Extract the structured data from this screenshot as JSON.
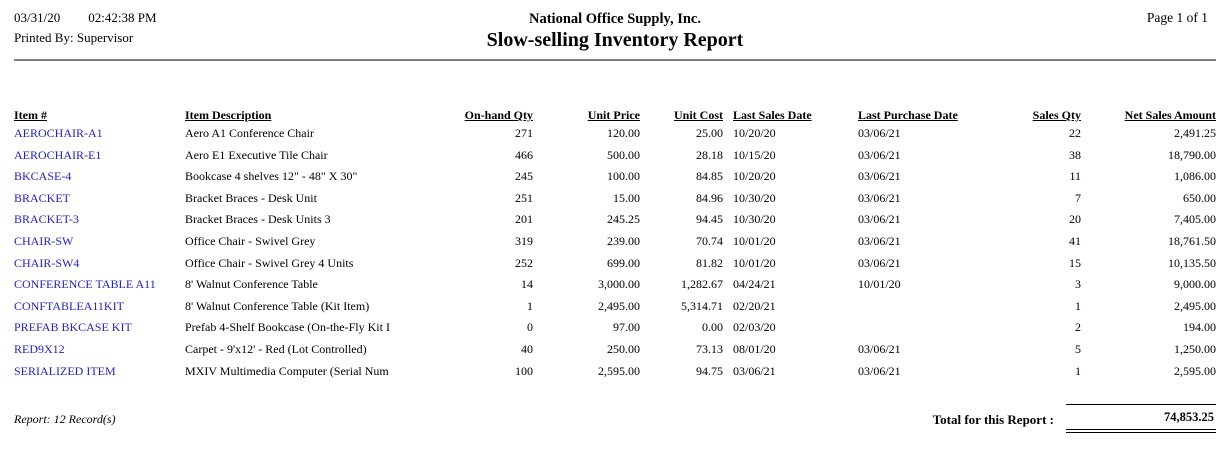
{
  "header": {
    "date": "03/31/20",
    "time": "02:42:38 PM",
    "printed_by": "Printed By: Supervisor",
    "company": "National Office Supply, Inc.",
    "title": "Slow-selling Inventory Report",
    "page_label": "Page 1 of 1"
  },
  "table": {
    "columns": [
      "Item #",
      "Item Description",
      "On-hand Qty",
      "Unit Price",
      "Unit Cost",
      "Last Sales Date",
      "Last Purchase Date",
      "Sales Qty",
      "Net Sales Amount"
    ],
    "rows": [
      {
        "item": "AEROCHAIR-A1",
        "description": "Aero A1 Conference Chair",
        "on_hand_qty": "271",
        "unit_price": "120.00",
        "unit_cost": "25.00",
        "last_sales_date": "10/20/20",
        "last_purchase_date": "03/06/21",
        "sales_qty": "22",
        "net_sales_amount": "2,491.25"
      },
      {
        "item": "AEROCHAIR-E1",
        "description": "Aero E1 Executive Tile Chair",
        "on_hand_qty": "466",
        "unit_price": "500.00",
        "unit_cost": "28.18",
        "last_sales_date": "10/15/20",
        "last_purchase_date": "03/06/21",
        "sales_qty": "38",
        "net_sales_amount": "18,790.00"
      },
      {
        "item": "BKCASE-4",
        "description": "Bookcase 4 shelves 12\" - 48\" X 30\"",
        "on_hand_qty": "245",
        "unit_price": "100.00",
        "unit_cost": "84.85",
        "last_sales_date": "10/20/20",
        "last_purchase_date": "03/06/21",
        "sales_qty": "11",
        "net_sales_amount": "1,086.00"
      },
      {
        "item": "BRACKET",
        "description": "Bracket Braces - Desk Unit",
        "on_hand_qty": "251",
        "unit_price": "15.00",
        "unit_cost": "84.96",
        "last_sales_date": "10/30/20",
        "last_purchase_date": "03/06/21",
        "sales_qty": "7",
        "net_sales_amount": "650.00"
      },
      {
        "item": "BRACKET-3",
        "description": "Bracket Braces - Desk Units 3",
        "on_hand_qty": "201",
        "unit_price": "245.25",
        "unit_cost": "94.45",
        "last_sales_date": "10/30/20",
        "last_purchase_date": "03/06/21",
        "sales_qty": "20",
        "net_sales_amount": "7,405.00"
      },
      {
        "item": "CHAIR-SW",
        "description": "Office Chair - Swivel Grey",
        "on_hand_qty": "319",
        "unit_price": "239.00",
        "unit_cost": "70.74",
        "last_sales_date": "10/01/20",
        "last_purchase_date": "03/06/21",
        "sales_qty": "41",
        "net_sales_amount": "18,761.50"
      },
      {
        "item": "CHAIR-SW4",
        "description": "Office Chair - Swivel Grey 4 Units",
        "on_hand_qty": "252",
        "unit_price": "699.00",
        "unit_cost": "81.82",
        "last_sales_date": "10/01/20",
        "last_purchase_date": "03/06/21",
        "sales_qty": "15",
        "net_sales_amount": "10,135.50"
      },
      {
        "item": "CONFERENCE TABLE A11",
        "description": "8' Walnut Conference Table",
        "on_hand_qty": "14",
        "unit_price": "3,000.00",
        "unit_cost": "1,282.67",
        "last_sales_date": "04/24/21",
        "last_purchase_date": "10/01/20",
        "sales_qty": "3",
        "net_sales_amount": "9,000.00"
      },
      {
        "item": "CONFTABLEA11KIT",
        "description": "8' Walnut Conference Table (Kit Item)",
        "on_hand_qty": "1",
        "unit_price": "2,495.00",
        "unit_cost": "5,314.71",
        "last_sales_date": "02/20/21",
        "last_purchase_date": "",
        "sales_qty": "1",
        "net_sales_amount": "2,495.00"
      },
      {
        "item": "PREFAB BKCASE KIT",
        "description": "Prefab 4-Shelf Bookcase (On-the-Fly Kit I",
        "on_hand_qty": "0",
        "unit_price": "97.00",
        "unit_cost": "0.00",
        "last_sales_date": "02/03/20",
        "last_purchase_date": "",
        "sales_qty": "2",
        "net_sales_amount": "194.00"
      },
      {
        "item": "RED9X12",
        "description": "Carpet - 9'x12' - Red (Lot Controlled)",
        "on_hand_qty": "40",
        "unit_price": "250.00",
        "unit_cost": "73.13",
        "last_sales_date": "08/01/20",
        "last_purchase_date": "03/06/21",
        "sales_qty": "5",
        "net_sales_amount": "1,250.00"
      },
      {
        "item": "SERIALIZED ITEM",
        "description": "MXIV Multimedia Computer (Serial Num",
        "on_hand_qty": "100",
        "unit_price": "2,595.00",
        "unit_cost": "94.75",
        "last_sales_date": "03/06/21",
        "last_purchase_date": "03/06/21",
        "sales_qty": "1",
        "net_sales_amount": "2,595.00"
      }
    ]
  },
  "footer": {
    "record_count": "Report: 12 Record(s)",
    "total_label": "Total for this Report :",
    "total_value": "74,853.25"
  },
  "colors": {
    "item_link_blue": "#2222CC",
    "rule_gray": "#7d7d7d",
    "text": "#000000",
    "background": "#FFFFFF"
  }
}
